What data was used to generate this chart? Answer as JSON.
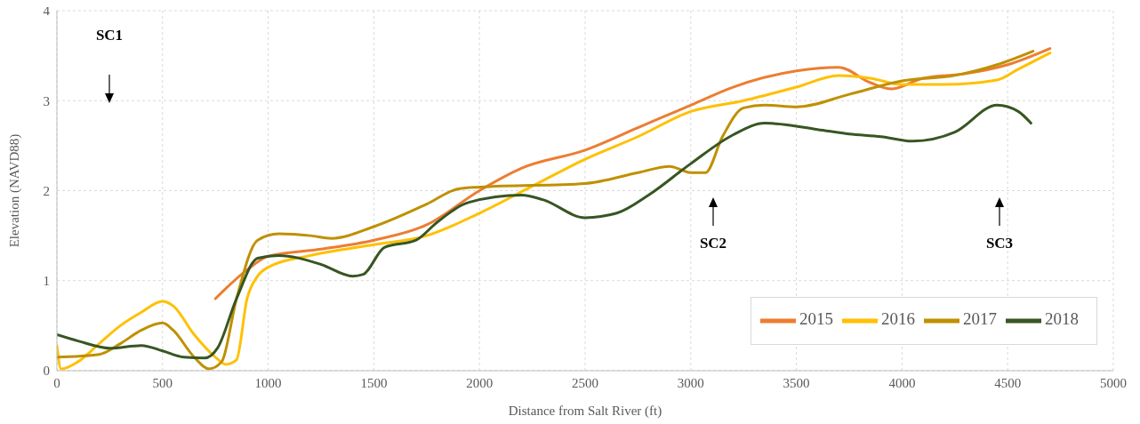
{
  "chart_data": {
    "type": "line",
    "xlabel": "Distance from Salt River (ft)",
    "ylabel": "Elevation (NAVD88)",
    "xlim": [
      0,
      5000
    ],
    "xticks": [
      0,
      500,
      1000,
      1500,
      2000,
      2500,
      3000,
      3500,
      4000,
      4500,
      5000
    ],
    "ylim": [
      0,
      4
    ],
    "yticks": [
      0,
      1,
      2,
      3,
      4
    ],
    "grid": true,
    "legend": "bottom right",
    "marker": "none",
    "line_style": "solid",
    "annotations": [
      "SC1",
      "SC2",
      "SC3"
    ],
    "series": [
      {
        "name": "2015",
        "color": "#ed7d31",
        "x": [
          750,
          900,
          1000,
          1250,
          1500,
          1750,
          2000,
          2200,
          2500,
          2750,
          3000,
          3200,
          3500,
          3700,
          3850,
          3950,
          4100,
          4300,
          4500,
          4700
        ],
        "values": [
          0.8,
          1.12,
          1.27,
          1.35,
          1.45,
          1.62,
          2.0,
          2.25,
          2.45,
          2.7,
          2.95,
          3.15,
          3.33,
          3.37,
          3.2,
          3.13,
          3.25,
          3.3,
          3.4,
          3.58
        ]
      },
      {
        "name": "2016",
        "color": "#ffc000",
        "x": [
          0,
          20,
          100,
          200,
          300,
          400,
          500,
          550,
          650,
          750,
          800,
          850,
          900,
          950,
          1000,
          1200,
          1500,
          1750,
          2000,
          2250,
          2500,
          2750,
          3000,
          3250,
          3500,
          3700,
          3850,
          4000,
          4200,
          4450,
          4550,
          4700
        ],
        "values": [
          0.28,
          0.02,
          0.1,
          0.3,
          0.5,
          0.65,
          0.77,
          0.72,
          0.4,
          0.15,
          0.07,
          0.12,
          0.8,
          1.05,
          1.15,
          1.28,
          1.4,
          1.5,
          1.75,
          2.05,
          2.35,
          2.6,
          2.88,
          3.0,
          3.15,
          3.28,
          3.25,
          3.18,
          3.18,
          3.23,
          3.35,
          3.53
        ]
      },
      {
        "name": "2017",
        "color": "#bf9000",
        "x": [
          0,
          200,
          300,
          400,
          500,
          550,
          650,
          720,
          780,
          850,
          950,
          1050,
          1200,
          1300,
          1500,
          1750,
          1900,
          2000,
          2500,
          2750,
          2900,
          3000,
          3070,
          3150,
          3250,
          3350,
          3500,
          3750,
          4000,
          4250,
          4450,
          4620
        ],
        "values": [
          0.15,
          0.18,
          0.3,
          0.45,
          0.53,
          0.45,
          0.15,
          0.02,
          0.1,
          0.8,
          1.45,
          1.52,
          1.5,
          1.47,
          1.6,
          1.85,
          2.02,
          2.04,
          2.08,
          2.2,
          2.27,
          2.2,
          2.2,
          2.6,
          2.92,
          2.95,
          2.93,
          3.07,
          3.22,
          3.28,
          3.4,
          3.55
        ]
      },
      {
        "name": "2018",
        "color": "#375623",
        "x": [
          0,
          100,
          250,
          400,
          500,
          600,
          700,
          760,
          850,
          950,
          1050,
          1250,
          1400,
          1450,
          1550,
          1700,
          1800,
          1950,
          2200,
          2300,
          2500,
          2650,
          2800,
          3000,
          3200,
          3350,
          3600,
          3750,
          3900,
          4050,
          4250,
          4450,
          4550,
          4610
        ],
        "values": [
          0.4,
          0.33,
          0.25,
          0.28,
          0.22,
          0.15,
          0.14,
          0.25,
          0.8,
          1.25,
          1.28,
          1.18,
          1.05,
          1.07,
          1.37,
          1.45,
          1.65,
          1.87,
          1.95,
          1.9,
          1.7,
          1.75,
          1.95,
          2.3,
          2.62,
          2.75,
          2.68,
          2.63,
          2.6,
          2.55,
          2.65,
          2.95,
          2.88,
          2.75
        ]
      }
    ]
  }
}
